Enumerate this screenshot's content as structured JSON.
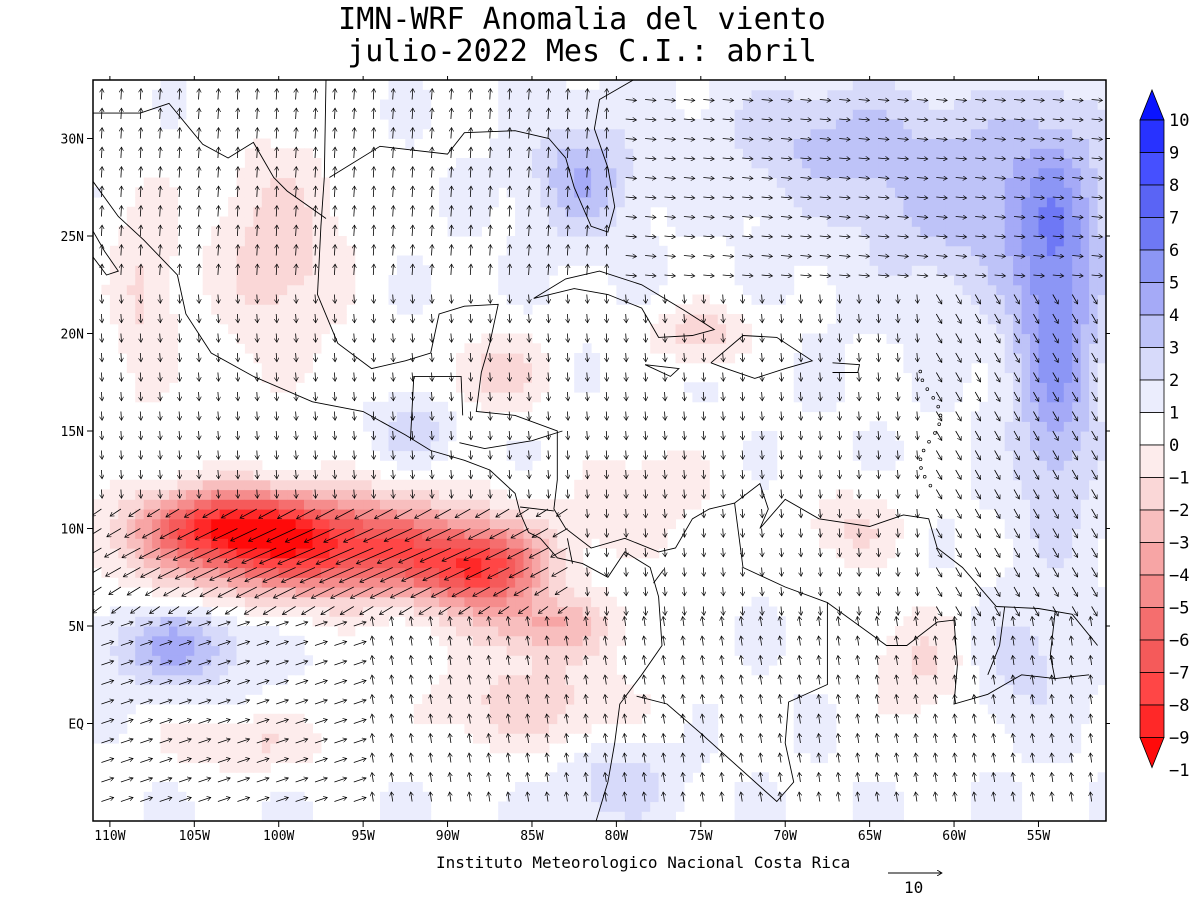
{
  "title_line1": "IMN-WRF Anomalia del viento",
  "title_line2": "julio-2022 Mes C.I.: abril",
  "credit": "Instituto Meteorologico Nacional Costa Rica",
  "reference_vector_label": "10",
  "lon_ticks": [
    {
      "lon": -110,
      "label": "110W"
    },
    {
      "lon": -105,
      "label": "105W"
    },
    {
      "lon": -100,
      "label": "100W"
    },
    {
      "lon": -95,
      "label": "95W"
    },
    {
      "lon": -90,
      "label": "90W"
    },
    {
      "lon": -85,
      "label": "85W"
    },
    {
      "lon": -80,
      "label": "80W"
    },
    {
      "lon": -75,
      "label": "75W"
    },
    {
      "lon": -70,
      "label": "70W"
    },
    {
      "lon": -65,
      "label": "65W"
    },
    {
      "lon": -60,
      "label": "60W"
    },
    {
      "lon": -55,
      "label": "55W"
    }
  ],
  "lat_ticks": [
    {
      "lat": 30,
      "label": "30N"
    },
    {
      "lat": 25,
      "label": "25N"
    },
    {
      "lat": 20,
      "label": "20N"
    },
    {
      "lat": 15,
      "label": "15N"
    },
    {
      "lat": 10,
      "label": "10N"
    },
    {
      "lat": 5,
      "label": "5N"
    },
    {
      "lat": 0,
      "label": "EQ"
    }
  ],
  "extent": {
    "lon_min": -111,
    "lon_max": -51,
    "lat_min": -5,
    "lat_max": 33
  },
  "colorbar": {
    "levels": [
      {
        "label": "10",
        "color": "#0a14ff"
      },
      {
        "label": "9",
        "color": "#2832ff"
      },
      {
        "label": "8",
        "color": "#4650ff"
      },
      {
        "label": "7",
        "color": "#5a64f5"
      },
      {
        "label": "6",
        "color": "#6e78f5"
      },
      {
        "label": "5",
        "color": "#8c96f5"
      },
      {
        "label": "4",
        "color": "#a5aaf7"
      },
      {
        "label": "3",
        "color": "#bec3f8"
      },
      {
        "label": "2",
        "color": "#d7dafa"
      },
      {
        "label": "1",
        "color": "#ebedfd"
      },
      {
        "label": "0",
        "color": "#ffffff"
      },
      {
        "label": "−1",
        "color": "#fdecec"
      },
      {
        "label": "−2",
        "color": "#fad7d7"
      },
      {
        "label": "−3",
        "color": "#f8bebe"
      },
      {
        "label": "−4",
        "color": "#f7a5a5"
      },
      {
        "label": "−5",
        "color": "#f58c8c"
      },
      {
        "label": "−6",
        "color": "#f56e6e"
      },
      {
        "label": "−7",
        "color": "#f55a5a"
      },
      {
        "label": "−8",
        "color": "#ff4646"
      },
      {
        "label": "−9",
        "color": "#ff2828"
      },
      {
        "label": "−1",
        "color": "#ff0a0a"
      }
    ]
  },
  "anomaly_field": {
    "description_units": "m/s",
    "blobs": [
      {
        "lon": -97,
        "lat": 9,
        "rx": 10,
        "ry": 2.6,
        "value": -8.5
      },
      {
        "lon": -103,
        "lat": 10.3,
        "rx": 5,
        "ry": 1.8,
        "value": -6
      },
      {
        "lon": -88,
        "lat": 7.8,
        "rx": 3.5,
        "ry": 2,
        "value": -6
      },
      {
        "lon": -84,
        "lat": 5,
        "rx": 4,
        "ry": 1.6,
        "value": -3.5
      },
      {
        "lon": -106,
        "lat": 4,
        "rx": 4,
        "ry": 2,
        "value": 3.5
      },
      {
        "lon": -54,
        "lat": 20,
        "rx": 2.5,
        "ry": 9,
        "value": 4.5
      },
      {
        "lon": -58,
        "lat": 27,
        "rx": 8,
        "ry": 5,
        "value": 2.8
      },
      {
        "lon": -68,
        "lat": 30,
        "rx": 6,
        "ry": 3,
        "value": 2
      },
      {
        "lon": -82,
        "lat": 28,
        "rx": 3,
        "ry": 3,
        "value": 3
      },
      {
        "lon": -100,
        "lat": 24,
        "rx": 4,
        "ry": 6,
        "value": -2.5
      },
      {
        "lon": -108,
        "lat": 22,
        "rx": 2,
        "ry": 6,
        "value": -2
      },
      {
        "lon": -87,
        "lat": 18,
        "rx": 3,
        "ry": 2,
        "value": -2.5
      },
      {
        "lon": -75,
        "lat": 20,
        "rx": 3,
        "ry": 1.5,
        "value": -2.5
      },
      {
        "lon": -85,
        "lat": 1,
        "rx": 6,
        "ry": 2.5,
        "value": -2.5
      },
      {
        "lon": -102,
        "lat": -1,
        "rx": 5,
        "ry": 1.5,
        "value": -2
      },
      {
        "lon": -78,
        "lat": 12,
        "rx": 4,
        "ry": 3,
        "value": -1.5
      },
      {
        "lon": -62,
        "lat": 3,
        "rx": 3,
        "ry": 3,
        "value": -2
      },
      {
        "lon": -92,
        "lat": 15,
        "rx": 2,
        "ry": 1.5,
        "value": 2
      },
      {
        "lon": -80,
        "lat": -3,
        "rx": 3,
        "ry": 2,
        "value": 2
      },
      {
        "lon": -56,
        "lat": 3,
        "rx": 3,
        "ry": 3,
        "value": 1.5
      },
      {
        "lon": -66,
        "lat": 10,
        "rx": 3,
        "ry": 2,
        "value": -2
      }
    ]
  }
}
